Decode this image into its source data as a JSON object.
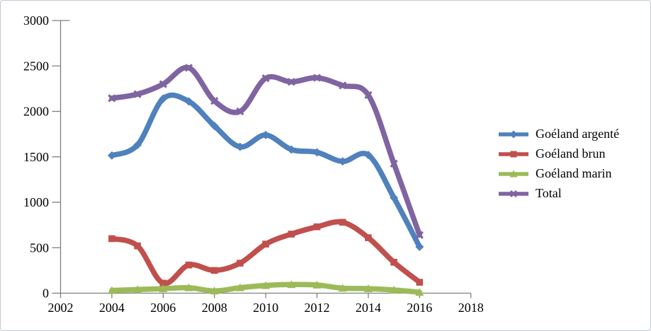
{
  "frame": {
    "background": "#ffffff",
    "border_color": "#c3cad6"
  },
  "chart_data": {
    "type": "line",
    "title": "",
    "xlabel": "",
    "ylabel": "",
    "smoothed": true,
    "grid": false,
    "legend_position": "right",
    "xlim": [
      2002,
      2018
    ],
    "ylim": [
      0,
      3000
    ],
    "xticks": [
      2002,
      2004,
      2006,
      2008,
      2010,
      2012,
      2014,
      2016,
      2018
    ],
    "yticks": [
      0,
      500,
      1000,
      1500,
      2000,
      2500,
      3000
    ],
    "x": [
      2004,
      2005,
      2006,
      2007,
      2008,
      2009,
      2010,
      2011,
      2012,
      2013,
      2014,
      2015,
      2016
    ],
    "series": [
      {
        "name": "Goéland argenté",
        "color": "#4f81bd",
        "marker": "diamond",
        "values": [
          1515,
          1630,
          2140,
          2110,
          1840,
          1610,
          1740,
          1580,
          1550,
          1450,
          1520,
          1050,
          510
        ]
      },
      {
        "name": "Goéland brun",
        "color": "#c0504d",
        "marker": "square",
        "values": [
          600,
          520,
          110,
          310,
          250,
          330,
          540,
          650,
          730,
          780,
          610,
          340,
          120
        ]
      },
      {
        "name": "Goéland marin",
        "color": "#9bbb59",
        "marker": "triangle",
        "values": [
          30,
          40,
          50,
          60,
          25,
          60,
          85,
          95,
          90,
          55,
          50,
          35,
          10
        ]
      },
      {
        "name": "Total",
        "color": "#8064a2",
        "marker": "x",
        "values": [
          2145,
          2190,
          2300,
          2480,
          2115,
          2000,
          2365,
          2325,
          2370,
          2285,
          2180,
          1425,
          640
        ]
      }
    ],
    "axis": {
      "line_color": "#7f7f7f",
      "tick_color": "#7f7f7f",
      "label_color": "#000000",
      "label_font_size": 18
    }
  }
}
